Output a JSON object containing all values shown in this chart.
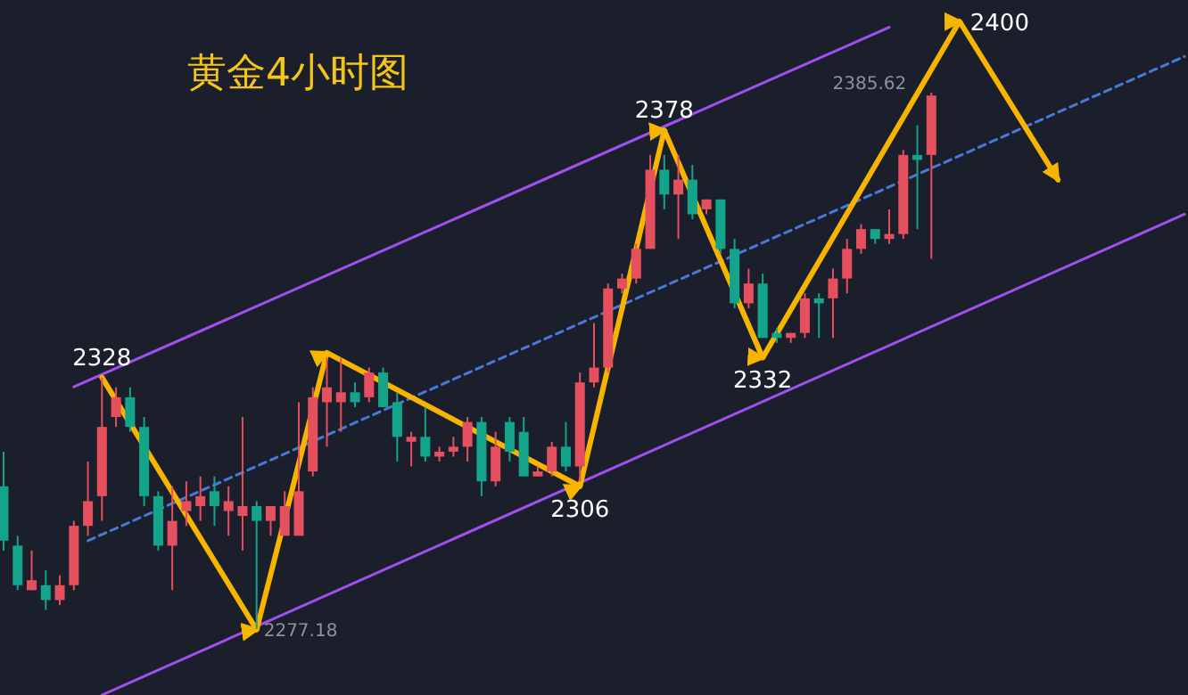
{
  "chart_data": {
    "type": "candlestick",
    "title": "黄金4小时图",
    "categories": [
      null,
      null,
      null,
      null,
      null,
      null,
      null,
      null,
      null,
      null,
      null,
      null,
      null,
      null,
      null,
      null,
      null,
      null,
      null,
      null,
      null,
      null,
      null,
      null,
      null,
      null,
      null,
      null,
      null,
      null,
      null,
      null,
      null,
      null,
      null,
      null,
      null,
      null,
      null,
      null,
      null,
      null,
      null,
      null,
      null,
      null,
      null,
      null,
      null,
      null,
      null,
      null,
      null,
      null,
      null,
      null,
      null,
      null,
      null,
      null,
      null,
      null,
      null,
      null,
      null,
      null,
      null,
      null,
      null,
      null,
      null,
      null,
      null,
      null,
      null,
      null,
      null,
      null,
      null,
      null,
      null,
      null,
      null,
      null,
      null
    ],
    "ohlc": [
      [
        2306,
        2313,
        2293,
        2295
      ],
      [
        2294,
        2296,
        2285,
        2286
      ],
      [
        2285,
        2293,
        2285,
        2287
      ],
      [
        2286,
        2289,
        2281,
        2283
      ],
      [
        2283,
        2288,
        2282,
        2286
      ],
      [
        2286,
        2299,
        2285,
        2298
      ],
      [
        2298,
        2311,
        2296,
        2303
      ],
      [
        2304,
        2328,
        2299,
        2318
      ],
      [
        2320,
        2326,
        2318,
        2324
      ],
      [
        2324,
        2326,
        2317,
        2318
      ],
      [
        2318,
        2320,
        2302,
        2304
      ],
      [
        2304,
        2305,
        2293,
        2294
      ],
      [
        2294,
        2306,
        2285,
        2299
      ],
      [
        2301,
        2307,
        2298,
        2303
      ],
      [
        2302,
        2308,
        2299,
        2304
      ],
      [
        2305,
        2308,
        2298,
        2302
      ],
      [
        2301,
        2306,
        2296,
        2303
      ],
      [
        2300,
        2320,
        2293,
        2302
      ],
      [
        2302,
        2303,
        2277.18,
        2299
      ],
      [
        2299,
        2302,
        2296,
        2302
      ],
      [
        2296,
        2305,
        2296,
        2302
      ],
      [
        2296,
        2323,
        2296,
        2305
      ],
      [
        2309,
        2326,
        2308,
        2324
      ],
      [
        2323,
        2332,
        2314,
        2326
      ],
      [
        2323,
        2332,
        2317,
        2325
      ],
      [
        2325,
        2327,
        2322,
        2323
      ],
      [
        2324,
        2330,
        2323,
        2329
      ],
      [
        2329,
        2330,
        2322,
        2322
      ],
      [
        2323,
        2325,
        2311,
        2316
      ],
      [
        2315,
        2317,
        2310,
        2316
      ],
      [
        2316,
        2322,
        2311,
        2312
      ],
      [
        2312,
        2314,
        2311,
        2313
      ],
      [
        2313,
        2316,
        2312,
        2314
      ],
      [
        2314,
        2320,
        2311,
        2319
      ],
      [
        2319,
        2320,
        2304,
        2307
      ],
      [
        2307,
        2317,
        2306,
        2314
      ],
      [
        2319,
        2320,
        2311,
        2313
      ],
      [
        2317,
        2320,
        2308,
        2308
      ],
      [
        2308,
        2310,
        2308,
        2309
      ],
      [
        2309,
        2315,
        2308,
        2314
      ],
      [
        2314,
        2319,
        2309,
        2310
      ],
      [
        2310,
        2329,
        2307,
        2327
      ],
      [
        2327,
        2339,
        2326,
        2330
      ],
      [
        2330,
        2347,
        2329,
        2346
      ],
      [
        2346,
        2349,
        2345,
        2348
      ],
      [
        2348,
        2355,
        2347,
        2354
      ],
      [
        2354,
        2373,
        2354,
        2370
      ],
      [
        2370,
        2373,
        2362,
        2365
      ],
      [
        2365,
        2373,
        2356,
        2368
      ],
      [
        2368,
        2371,
        2360,
        2361
      ],
      [
        2362,
        2364,
        2361,
        2364
      ],
      [
        2364,
        2364,
        2353,
        2354
      ],
      [
        2354,
        2356,
        2342,
        2343
      ],
      [
        2343,
        2350,
        2342,
        2347
      ],
      [
        2347,
        2349,
        2336,
        2336
      ],
      [
        2337,
        2338,
        2335,
        2336
      ],
      [
        2336,
        2337,
        2335,
        2337
      ],
      [
        2337,
        2345,
        2336,
        2344
      ],
      [
        2344,
        2345,
        2336,
        2343
      ],
      [
        2344,
        2350,
        2336,
        2348
      ],
      [
        2348,
        2356,
        2345,
        2354
      ],
      [
        2354,
        2359,
        2353,
        2358
      ],
      [
        2358,
        2358,
        2355,
        2356
      ],
      [
        2356,
        2362,
        2355,
        2357
      ],
      [
        2357,
        2374,
        2356,
        2373
      ],
      [
        2373,
        2379,
        2358,
        2372
      ],
      [
        2373,
        2385.62,
        2352,
        2385
      ],
      null,
      null,
      null,
      null,
      null,
      null,
      null,
      null,
      null,
      null,
      null,
      null,
      null,
      null,
      null,
      null,
      null,
      null
    ],
    "colors": [
      "#14a38b",
      "#14a38b",
      "#e5505e",
      "#14a38b",
      "#e5505e",
      "#e5505e",
      "#e5505e",
      "#e5505e",
      "#e5505e",
      "#14a38b",
      "#14a38b",
      "#14a38b",
      "#e5505e",
      "#e5505e",
      "#e5505e",
      "#14a38b",
      "#e5505e",
      "#e5505e",
      "#14a38b",
      "#e5505e",
      "#e5505e",
      "#e5505e",
      "#e5505e",
      "#e5505e",
      "#e5505e",
      "#14a38b",
      "#e5505e",
      "#14a38b",
      "#14a38b",
      "#e5505e",
      "#14a38b",
      "#e5505e",
      "#e5505e",
      "#e5505e",
      "#14a38b",
      "#e5505e",
      "#14a38b",
      "#14a38b",
      "#e5505e",
      "#e5505e",
      "#14a38b",
      "#e5505e",
      "#e5505e",
      "#e5505e",
      "#e5505e",
      "#e5505e",
      "#e5505e",
      "#14a38b",
      "#e5505e",
      "#14a38b",
      "#e5505e",
      "#14a38b",
      "#14a38b",
      "#e5505e",
      "#14a38b",
      "#14a38b",
      "#e5505e",
      "#e5505e",
      "#14a38b",
      "#e5505e",
      "#e5505e",
      "#e5505e",
      "#14a38b",
      "#e5505e",
      "#e5505e",
      "#14a38b",
      "#e5505e",
      null,
      null,
      null,
      null,
      null,
      null,
      null,
      null,
      null,
      null,
      null,
      null,
      null,
      null,
      null,
      null,
      null,
      null
    ],
    "series": [
      {
        "type": "line",
        "color": "#a24ff0",
        "values": [
          null,
          null,
          null,
          null,
          null,
          2326.1,
          null,
          null,
          null,
          null,
          null,
          null,
          null,
          null,
          null,
          null,
          null,
          null,
          null,
          null,
          null,
          null,
          null,
          null,
          null,
          null,
          null,
          null,
          null,
          null,
          null,
          null,
          null,
          null,
          null,
          null,
          null,
          null,
          null,
          null,
          null,
          null,
          null,
          null,
          null,
          null,
          null,
          null,
          null,
          null,
          null,
          null,
          null,
          null,
          null,
          null,
          null,
          null,
          null,
          null,
          null,
          null,
          null,
          2398.8,
          null,
          null,
          null,
          null,
          null,
          null,
          null,
          null,
          null,
          null,
          null,
          null,
          null,
          null,
          null,
          null,
          null,
          null,
          null,
          null,
          null
        ]
      },
      {
        "type": "line",
        "color": "#a24ff0",
        "values": [
          null,
          null,
          null,
          null,
          null,
          null,
          null,
          2263.8,
          null,
          null,
          null,
          null,
          null,
          null,
          null,
          null,
          null,
          null,
          null,
          null,
          null,
          null,
          null,
          null,
          null,
          null,
          null,
          null,
          null,
          null,
          null,
          null,
          null,
          null,
          null,
          null,
          null,
          null,
          null,
          null,
          null,
          null,
          null,
          null,
          null,
          null,
          null,
          null,
          null,
          null,
          null,
          null,
          null,
          null,
          null,
          null,
          null,
          null,
          null,
          null,
          null,
          null,
          null,
          null,
          null,
          null,
          null,
          null,
          null,
          null,
          null,
          null,
          null,
          null,
          null,
          null,
          null,
          null,
          null,
          null,
          null,
          null,
          null,
          null,
          2361
        ]
      },
      {
        "type": "line",
        "color": "#4a78d8",
        "line_style": "dashed",
        "values": [
          null,
          null,
          null,
          null,
          null,
          null,
          2295,
          null,
          null,
          null,
          null,
          null,
          null,
          null,
          null,
          null,
          null,
          null,
          null,
          null,
          null,
          null,
          null,
          null,
          null,
          null,
          null,
          null,
          null,
          null,
          null,
          null,
          null,
          null,
          null,
          null,
          null,
          null,
          null,
          null,
          null,
          null,
          null,
          null,
          null,
          null,
          null,
          null,
          null,
          null,
          null,
          null,
          null,
          null,
          null,
          null,
          null,
          null,
          null,
          null,
          null,
          null,
          null,
          null,
          null,
          null,
          null,
          null,
          null,
          null,
          null,
          null,
          null,
          null,
          null,
          null,
          null,
          null,
          null,
          null,
          null,
          null,
          null,
          null,
          2392.9
        ]
      },
      {
        "type": "line",
        "color": "#f7b500",
        "values": [
          null,
          null,
          null,
          null,
          null,
          null,
          null,
          2328,
          null,
          null,
          null,
          null,
          null,
          null,
          null,
          null,
          null,
          null,
          2277,
          null,
          null,
          null,
          null,
          2333,
          null,
          null,
          null,
          null,
          null,
          null,
          null,
          null,
          null,
          null,
          null,
          null,
          null,
          null,
          null,
          null,
          null,
          2306,
          null,
          null,
          null,
          null,
          null,
          2378,
          null,
          null,
          null,
          null,
          null,
          null,
          2332,
          null,
          null,
          null,
          null,
          null,
          null,
          null,
          null,
          null,
          null,
          null,
          null,
          null,
          2400,
          null,
          null,
          null,
          null,
          null,
          null,
          2368,
          null,
          null,
          null,
          null,
          null,
          null,
          null,
          null,
          null
        ]
      }
    ],
    "annotations": [
      {
        "text": "2328",
        "y": 2328
      },
      "2277.18",
      {
        "text": "2306",
        "y": 2306
      },
      {
        "text": "2378",
        "y": 2378
      },
      {
        "text": "2332",
        "y": 2332
      },
      "2400",
      "2385.62"
    ]
  }
}
